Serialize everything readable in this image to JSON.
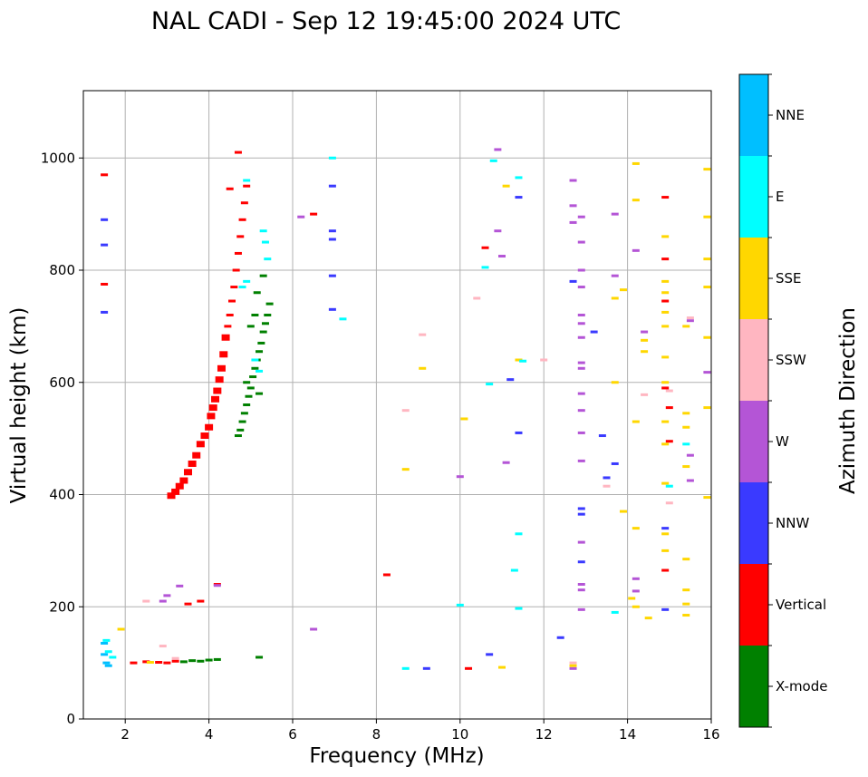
{
  "chart_data": {
    "type": "scatter",
    "title": "NAL CADI - Sep 12 19:45:00 2024 UTC",
    "xlabel": "Frequency (MHz)",
    "ylabel": "Virtual height (km)",
    "xlim": [
      1,
      16
    ],
    "ylim": [
      0,
      1120
    ],
    "xticks": [
      "2",
      "4",
      "6",
      "8",
      "10",
      "12",
      "14",
      "16"
    ],
    "yticks": [
      "0",
      "200",
      "400",
      "600",
      "800",
      "1000"
    ],
    "grid": true,
    "colorbar": {
      "label": "Azimuth Direction",
      "categories": [
        "X-mode",
        "Vertical",
        "NNW",
        "W",
        "SSW",
        "SSE",
        "E",
        "NNE"
      ],
      "colors": [
        "#008000",
        "#ff0000",
        "#3a3aff",
        "#b455d6",
        "#ffb6c1",
        "#ffd700",
        "#00ffff",
        "#00bfff"
      ]
    },
    "series": [
      {
        "name": "X-mode",
        "points": [
          [
            3.6,
            104
          ],
          [
            3.8,
            103
          ],
          [
            4.0,
            105
          ],
          [
            4.2,
            106
          ],
          [
            3.4,
            102
          ],
          [
            5.2,
            110
          ],
          [
            4.7,
            505
          ],
          [
            4.75,
            515
          ],
          [
            4.8,
            530
          ],
          [
            4.85,
            545
          ],
          [
            4.9,
            560
          ],
          [
            4.95,
            575
          ],
          [
            5.0,
            590
          ],
          [
            5.05,
            610
          ],
          [
            5.1,
            625
          ],
          [
            5.15,
            640
          ],
          [
            5.2,
            655
          ],
          [
            5.25,
            670
          ],
          [
            5.3,
            690
          ],
          [
            5.35,
            705
          ],
          [
            5.4,
            720
          ],
          [
            5.45,
            740
          ],
          [
            5.0,
            700
          ],
          [
            5.1,
            720
          ],
          [
            5.15,
            760
          ],
          [
            5.3,
            790
          ],
          [
            4.9,
            600
          ],
          [
            5.2,
            580
          ]
        ]
      },
      {
        "name": "Vertical",
        "points": [
          [
            1.5,
            970
          ],
          [
            1.5,
            775
          ],
          [
            2.2,
            100
          ],
          [
            2.5,
            102
          ],
          [
            2.8,
            101
          ],
          [
            3.0,
            100
          ],
          [
            3.2,
            103
          ],
          [
            3.1,
            398
          ],
          [
            3.2,
            405
          ],
          [
            3.3,
            415
          ],
          [
            3.4,
            425
          ],
          [
            3.5,
            440
          ],
          [
            3.6,
            455
          ],
          [
            3.7,
            470
          ],
          [
            3.8,
            490
          ],
          [
            3.9,
            505
          ],
          [
            4.0,
            520
          ],
          [
            4.05,
            540
          ],
          [
            4.1,
            555
          ],
          [
            4.15,
            570
          ],
          [
            4.2,
            585
          ],
          [
            4.25,
            605
          ],
          [
            4.3,
            625
          ],
          [
            4.35,
            650
          ],
          [
            4.4,
            680
          ],
          [
            4.45,
            700
          ],
          [
            4.5,
            720
          ],
          [
            4.55,
            745
          ],
          [
            4.6,
            770
          ],
          [
            4.65,
            800
          ],
          [
            4.7,
            830
          ],
          [
            4.75,
            860
          ],
          [
            4.8,
            890
          ],
          [
            4.85,
            920
          ],
          [
            4.9,
            950
          ],
          [
            4.7,
            1010
          ],
          [
            4.5,
            945
          ],
          [
            4.2,
            240
          ],
          [
            3.8,
            210
          ],
          [
            3.5,
            205
          ],
          [
            6.5,
            900
          ],
          [
            8.25,
            257
          ],
          [
            10.2,
            90
          ],
          [
            10.6,
            840
          ],
          [
            14.9,
            930
          ],
          [
            14.9,
            820
          ],
          [
            14.9,
            265
          ],
          [
            14.9,
            745
          ],
          [
            15.0,
            555
          ],
          [
            15.0,
            495
          ],
          [
            14.9,
            590
          ]
        ]
      },
      {
        "name": "NNW",
        "points": [
          [
            1.5,
            890
          ],
          [
            1.5,
            845
          ],
          [
            1.5,
            725
          ],
          [
            6.95,
            950
          ],
          [
            6.95,
            870
          ],
          [
            6.95,
            855
          ],
          [
            6.95,
            730
          ],
          [
            6.95,
            790
          ],
          [
            9.2,
            90
          ],
          [
            10.7,
            115
          ],
          [
            11.4,
            930
          ],
          [
            11.4,
            510
          ],
          [
            11.2,
            605
          ],
          [
            12.4,
            145
          ],
          [
            12.7,
            780
          ],
          [
            12.9,
            375
          ],
          [
            12.9,
            365
          ],
          [
            12.9,
            280
          ],
          [
            13.4,
            505
          ],
          [
            13.7,
            455
          ],
          [
            14.9,
            195
          ],
          [
            14.9,
            340
          ],
          [
            13.2,
            690
          ],
          [
            13.5,
            430
          ]
        ]
      },
      {
        "name": "W",
        "points": [
          [
            2.9,
            210
          ],
          [
            3.0,
            220
          ],
          [
            3.3,
            237
          ],
          [
            4.2,
            238
          ],
          [
            6.5,
            160
          ],
          [
            6.2,
            895
          ],
          [
            10.0,
            432
          ],
          [
            10.9,
            1015
          ],
          [
            10.9,
            870
          ],
          [
            11.0,
            825
          ],
          [
            11.1,
            457
          ],
          [
            12.7,
            960
          ],
          [
            12.7,
            915
          ],
          [
            12.7,
            885
          ],
          [
            12.9,
            895
          ],
          [
            12.9,
            850
          ],
          [
            12.9,
            800
          ],
          [
            12.9,
            770
          ],
          [
            12.9,
            720
          ],
          [
            12.9,
            705
          ],
          [
            12.9,
            680
          ],
          [
            12.9,
            635
          ],
          [
            12.9,
            625
          ],
          [
            12.9,
            580
          ],
          [
            12.9,
            550
          ],
          [
            12.9,
            510
          ],
          [
            12.9,
            460
          ],
          [
            12.9,
            315
          ],
          [
            12.9,
            240
          ],
          [
            12.9,
            230
          ],
          [
            12.9,
            195
          ],
          [
            13.7,
            900
          ],
          [
            13.7,
            790
          ],
          [
            14.2,
            835
          ],
          [
            14.2,
            250
          ],
          [
            14.2,
            228
          ],
          [
            14.4,
            690
          ],
          [
            15.5,
            710
          ],
          [
            15.5,
            470
          ],
          [
            15.5,
            425
          ],
          [
            15.9,
            618
          ],
          [
            12.7,
            90
          ]
        ]
      },
      {
        "name": "SSW",
        "points": [
          [
            2.5,
            210
          ],
          [
            2.9,
            130
          ],
          [
            3.2,
            108
          ],
          [
            8.7,
            550
          ],
          [
            9.1,
            685
          ],
          [
            10.4,
            750
          ],
          [
            12.0,
            640
          ],
          [
            12.7,
            100
          ],
          [
            13.5,
            415
          ],
          [
            14.4,
            578
          ],
          [
            15.0,
            385
          ],
          [
            15.0,
            585
          ],
          [
            15.5,
            715
          ]
        ]
      },
      {
        "name": "SSE",
        "points": [
          [
            1.9,
            160
          ],
          [
            2.6,
            101
          ],
          [
            8.7,
            445
          ],
          [
            9.1,
            625
          ],
          [
            10.1,
            535
          ],
          [
            11.0,
            92
          ],
          [
            11.1,
            950
          ],
          [
            11.4,
            640
          ],
          [
            12.7,
            95
          ],
          [
            13.7,
            600
          ],
          [
            13.7,
            750
          ],
          [
            13.9,
            765
          ],
          [
            13.9,
            370
          ],
          [
            14.1,
            215
          ],
          [
            14.2,
            990
          ],
          [
            14.2,
            925
          ],
          [
            14.2,
            530
          ],
          [
            14.2,
            340
          ],
          [
            14.2,
            200
          ],
          [
            14.4,
            675
          ],
          [
            14.4,
            655
          ],
          [
            14.5,
            180
          ],
          [
            14.9,
            860
          ],
          [
            14.9,
            780
          ],
          [
            14.9,
            760
          ],
          [
            14.9,
            725
          ],
          [
            14.9,
            700
          ],
          [
            14.9,
            645
          ],
          [
            14.9,
            600
          ],
          [
            14.9,
            530
          ],
          [
            14.9,
            490
          ],
          [
            14.9,
            420
          ],
          [
            14.9,
            330
          ],
          [
            14.9,
            300
          ],
          [
            15.4,
            700
          ],
          [
            15.4,
            545
          ],
          [
            15.4,
            520
          ],
          [
            15.4,
            450
          ],
          [
            15.4,
            285
          ],
          [
            15.4,
            230
          ],
          [
            15.4,
            205
          ],
          [
            15.4,
            185
          ],
          [
            15.9,
            980
          ],
          [
            15.9,
            895
          ],
          [
            15.9,
            820
          ],
          [
            15.9,
            770
          ],
          [
            15.9,
            680
          ],
          [
            15.9,
            555
          ],
          [
            15.9,
            395
          ]
        ]
      },
      {
        "name": "E",
        "points": [
          [
            1.55,
            140
          ],
          [
            1.6,
            120
          ],
          [
            1.7,
            110
          ],
          [
            4.8,
            770
          ],
          [
            4.9,
            960
          ],
          [
            4.9,
            780
          ],
          [
            5.3,
            870
          ],
          [
            5.35,
            850
          ],
          [
            5.4,
            820
          ],
          [
            5.1,
            640
          ],
          [
            5.2,
            620
          ],
          [
            6.95,
            1000
          ],
          [
            7.2,
            713
          ],
          [
            8.7,
            90
          ],
          [
            10.8,
            995
          ],
          [
            10.6,
            805
          ],
          [
            10.7,
            597
          ],
          [
            11.3,
            265
          ],
          [
            11.4,
            330
          ],
          [
            11.4,
            197
          ],
          [
            11.4,
            965
          ],
          [
            11.5,
            638
          ],
          [
            13.7,
            190
          ],
          [
            15.4,
            490
          ],
          [
            15.0,
            415
          ],
          [
            10.0,
            203
          ]
        ]
      },
      {
        "name": "NNE",
        "points": [
          [
            1.5,
            135
          ],
          [
            1.55,
            100
          ],
          [
            1.6,
            95
          ],
          [
            1.5,
            115
          ]
        ]
      }
    ]
  }
}
